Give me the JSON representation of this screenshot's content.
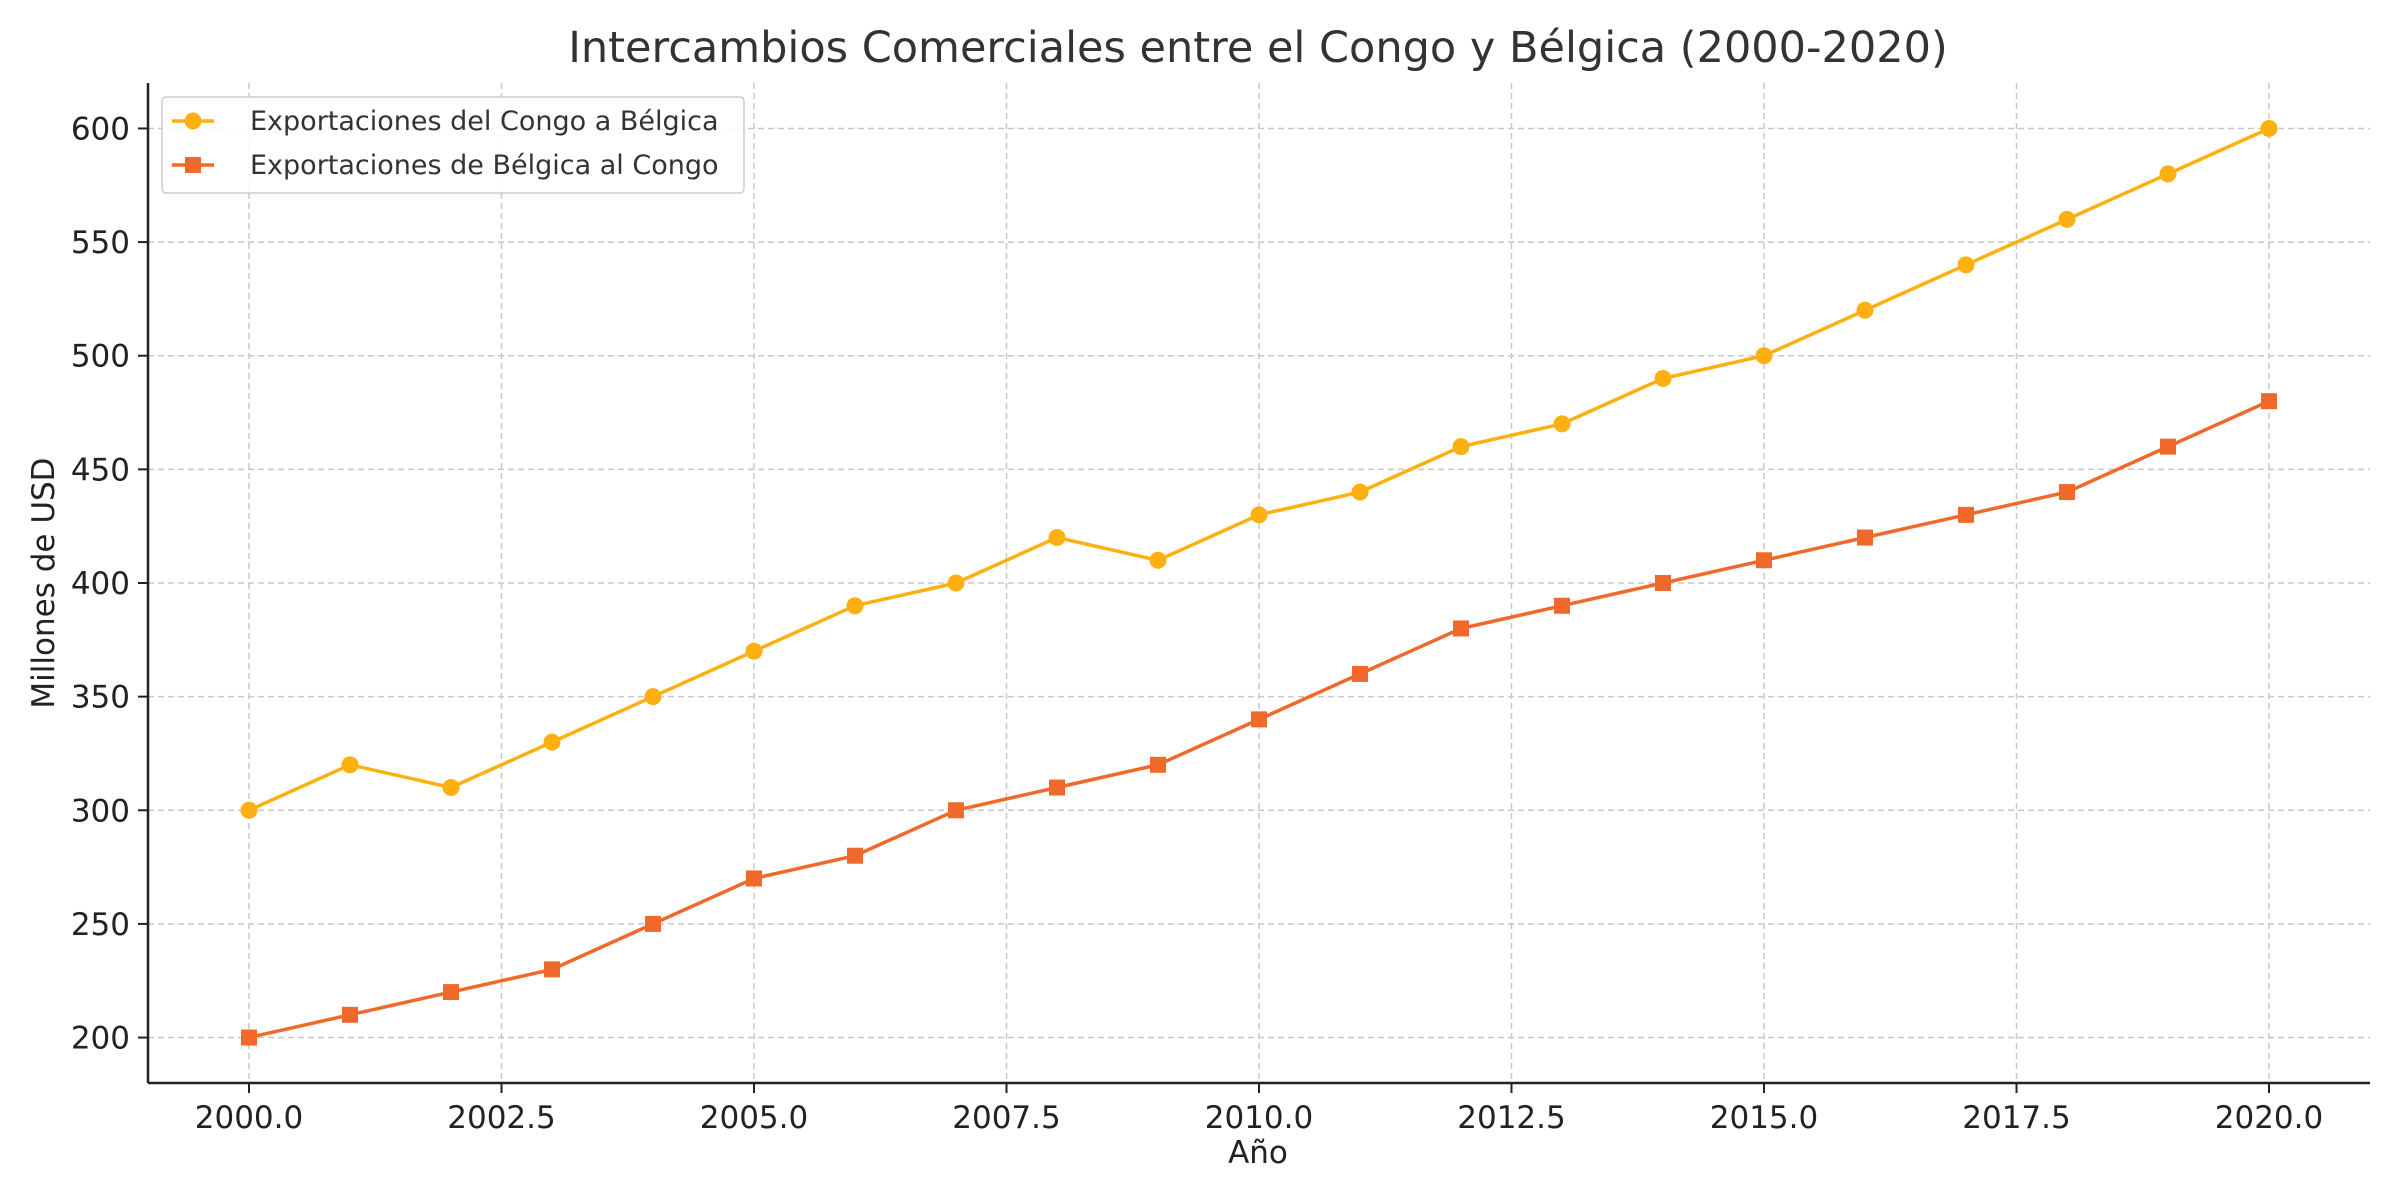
{
  "chart_data": {
    "type": "line",
    "title": "Intercambios Comerciales entre el Congo y Bélgica (2000-2020)",
    "xlabel": "Año",
    "ylabel": "Millones de USD",
    "xlim": [
      1999.0,
      2021.0
    ],
    "ylim": [
      180,
      620
    ],
    "x_ticks": [
      2000.0,
      2002.5,
      2005.0,
      2007.5,
      2010.0,
      2012.5,
      2015.0,
      2017.5,
      2020.0
    ],
    "x_tick_labels": [
      "2000.0",
      "2002.5",
      "2005.0",
      "2007.5",
      "2010.0",
      "2012.5",
      "2015.0",
      "2017.5",
      "2020.0"
    ],
    "y_ticks": [
      200,
      250,
      300,
      350,
      400,
      450,
      500,
      550,
      600
    ],
    "y_tick_labels": [
      "200",
      "250",
      "300",
      "350",
      "400",
      "450",
      "500",
      "550",
      "600"
    ],
    "grid": true,
    "legend_position": "top-left",
    "x": [
      2000,
      2001,
      2002,
      2003,
      2004,
      2005,
      2006,
      2007,
      2008,
      2009,
      2010,
      2011,
      2012,
      2013,
      2014,
      2015,
      2016,
      2017,
      2018,
      2019,
      2020
    ],
    "series": [
      {
        "name": "Exportaciones del Congo a Bélgica",
        "color": "#FDB00F",
        "marker": "circle",
        "values": [
          300,
          320,
          310,
          330,
          350,
          370,
          390,
          400,
          420,
          410,
          430,
          440,
          460,
          470,
          490,
          500,
          520,
          540,
          560,
          580,
          600
        ]
      },
      {
        "name": "Exportaciones de Bélgica al Congo",
        "color": "#F1692A",
        "marker": "square",
        "values": [
          200,
          210,
          220,
          230,
          250,
          270,
          280,
          300,
          310,
          320,
          340,
          360,
          380,
          390,
          400,
          410,
          420,
          430,
          440,
          460,
          480
        ]
      }
    ]
  }
}
